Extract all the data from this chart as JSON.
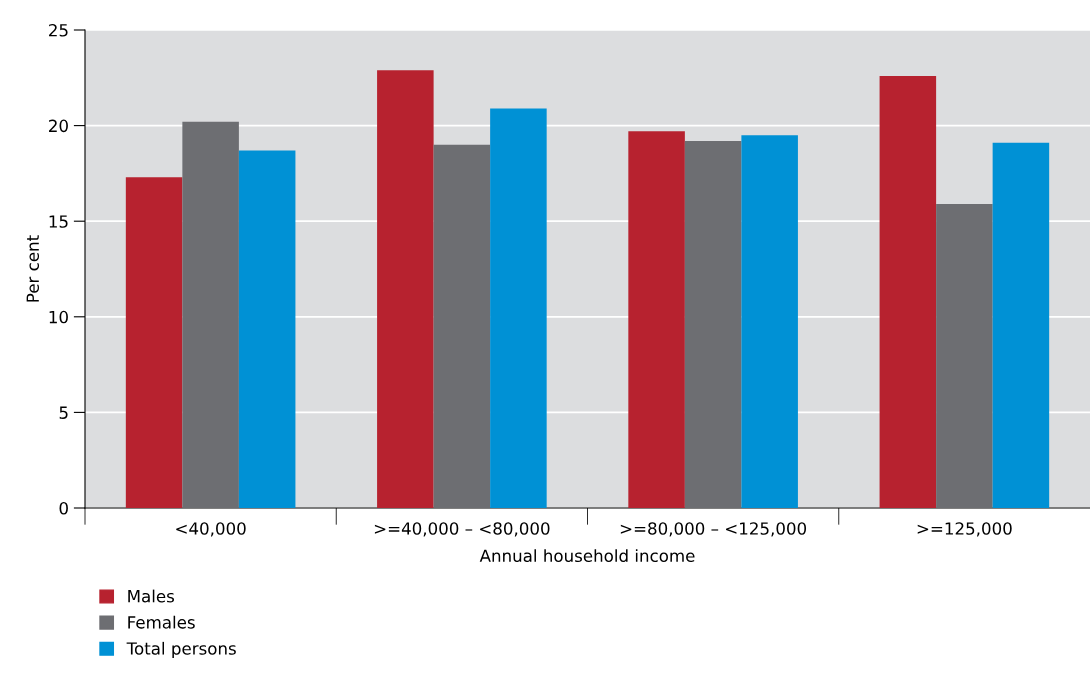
{
  "chart_data": {
    "type": "bar",
    "xlabel": "Annual household income",
    "ylabel": "Per cent",
    "categories": [
      "<40,000",
      ">=40,000 – <80,000",
      ">=80,000 – <125,000",
      ">=125,000"
    ],
    "series": [
      {
        "name": "Males",
        "color": "#b7222f",
        "values": [
          17.3,
          22.9,
          19.7,
          22.6
        ]
      },
      {
        "name": "Females",
        "color": "#6d6e72",
        "values": [
          20.2,
          19.0,
          19.2,
          15.9
        ]
      },
      {
        "name": "Total persons",
        "color": "#0091d5",
        "values": [
          18.7,
          20.9,
          19.5,
          19.1
        ]
      }
    ],
    "ylim": [
      0,
      25
    ],
    "yticks": [
      0,
      5,
      10,
      15,
      20,
      25
    ],
    "grid": "y",
    "legend": "bottom left"
  }
}
